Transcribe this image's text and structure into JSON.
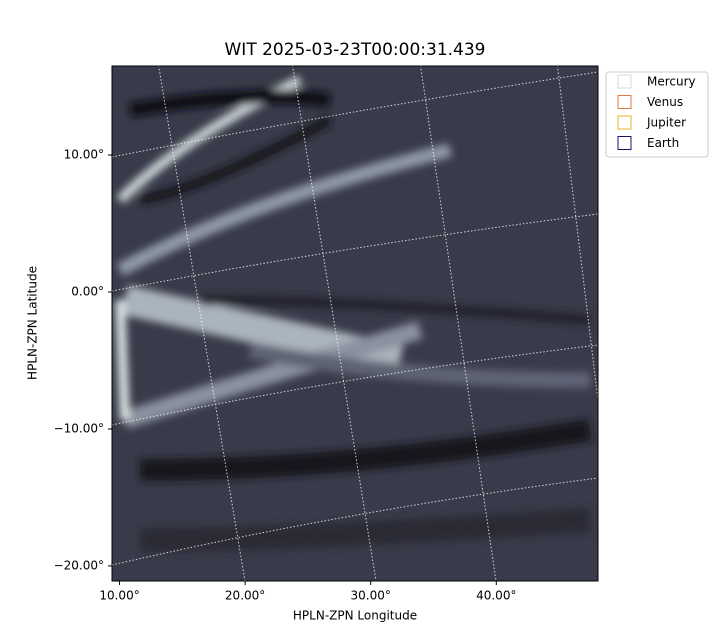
{
  "chart_data": {
    "type": "image",
    "title": "WIT 2025-03-23T00:00:31.439",
    "xlabel": "HPLN-ZPN Longitude",
    "ylabel": "HPLN-ZPN Latitude",
    "xlim": [
      9.4,
      48.1
    ],
    "ylim": [
      -21.1,
      16.5
    ],
    "xticks": [
      {
        "value": 10,
        "label": "10.00°"
      },
      {
        "value": 20,
        "label": "20.00°"
      },
      {
        "value": 30,
        "label": "30.00°"
      },
      {
        "value": 40,
        "label": "40.00°"
      }
    ],
    "yticks": [
      {
        "value": 10,
        "label": "10.00°"
      },
      {
        "value": 0,
        "label": "0.00°"
      },
      {
        "value": -10,
        "label": "−10.00°"
      },
      {
        "value": -20,
        "label": "−20.00°"
      }
    ],
    "legend_position": "upper right",
    "series": [
      {
        "name": "Mercury",
        "color": "#d9d9d9"
      },
      {
        "name": "Venus",
        "color": "#e07b39"
      },
      {
        "name": "Jupiter",
        "color": "#e6b020"
      },
      {
        "name": "Earth",
        "color": "#14146e"
      }
    ]
  }
}
